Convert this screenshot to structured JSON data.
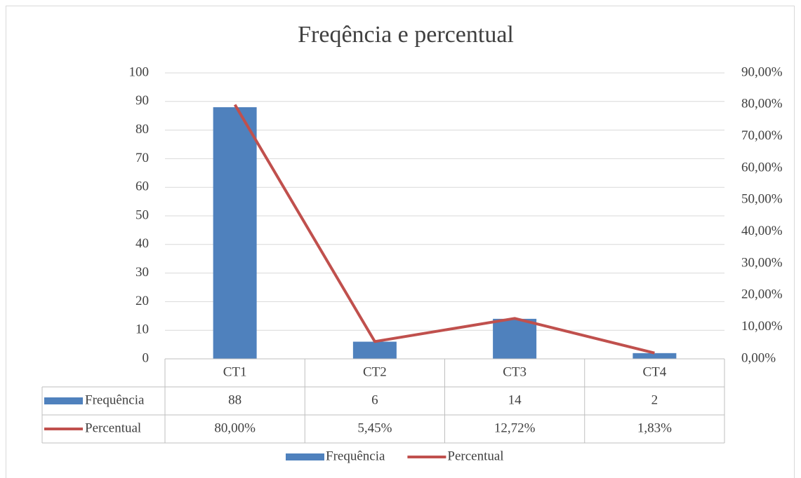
{
  "chart_data": {
    "type": "bar",
    "title": "Freqência e percentual",
    "categories": [
      "CT1",
      "CT2",
      "CT3",
      "CT4"
    ],
    "series": [
      {
        "name": "Frequência",
        "type": "bar",
        "color": "#4f81bd",
        "values": [
          88,
          6,
          14,
          2
        ]
      },
      {
        "name": "Percentual",
        "type": "line",
        "axis": "y2",
        "color": "#c0504d",
        "values": [
          80,
          5.45,
          12.72,
          1.83
        ],
        "value_labels": [
          "80,00%",
          "5,45%",
          "12,72%",
          "1,83%"
        ]
      }
    ],
    "ylim": [
      0,
      100
    ],
    "yticks": [
      0,
      10,
      20,
      30,
      40,
      50,
      60,
      70,
      80,
      90,
      100
    ],
    "y2lim": [
      0,
      90
    ],
    "y2ticks": [
      {
        "value": 0,
        "label": "0,00%"
      },
      {
        "value": 10,
        "label": "10,00%"
      },
      {
        "value": 20,
        "label": "20,00%"
      },
      {
        "value": 30,
        "label": "30,00%"
      },
      {
        "value": 40,
        "label": "40,00%"
      },
      {
        "value": 50,
        "label": "50,00%"
      },
      {
        "value": 60,
        "label": "60,00%"
      },
      {
        "value": 70,
        "label": "70,00%"
      },
      {
        "value": 80,
        "label": "80,00%"
      },
      {
        "value": 90,
        "label": "90,00%"
      }
    ],
    "grid": true,
    "data_table": true,
    "legend": "bottom"
  }
}
